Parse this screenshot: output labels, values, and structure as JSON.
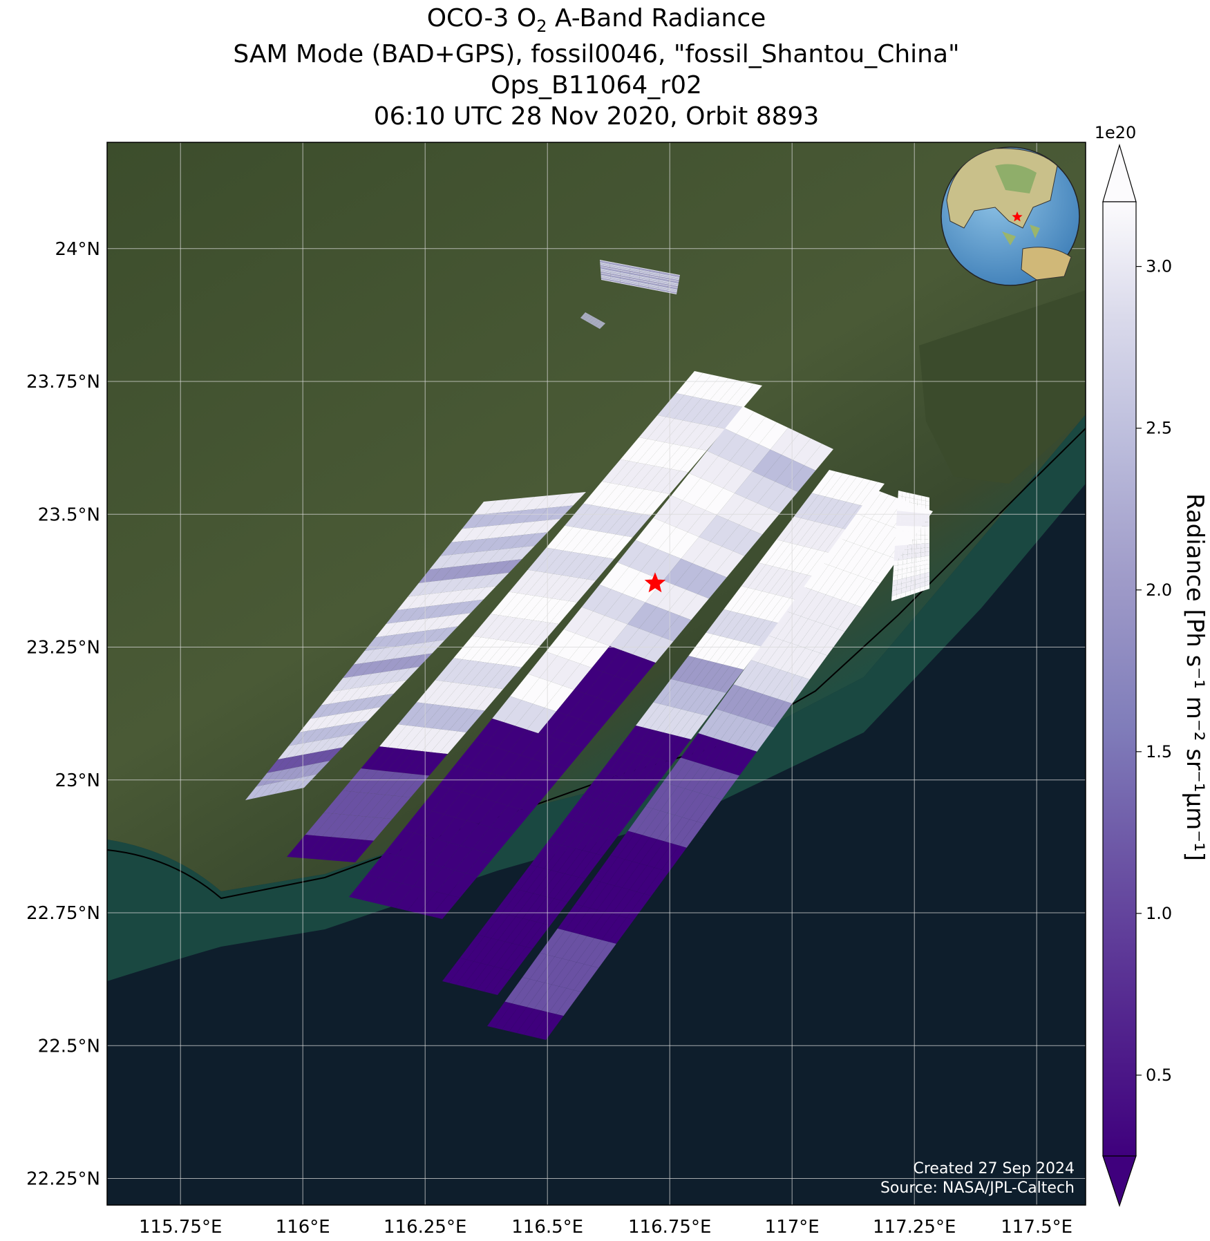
{
  "title": {
    "line1_pre": "OCO-3 O",
    "line1_sub": "2",
    "line1_post": " A-Band Radiance",
    "line2": "SAM Mode (BAD+GPS), fossil0046, \"fossil_Shantou_China\"",
    "line3": "Ops_B11064_r02",
    "line4": "06:10 UTC 28 Nov 2020, Orbit 8893"
  },
  "map": {
    "lon_ticks": [
      {
        "value": 115.75,
        "label": "115.75°E"
      },
      {
        "value": 116.0,
        "label": "116°E"
      },
      {
        "value": 116.25,
        "label": "116.25°E"
      },
      {
        "value": 116.5,
        "label": "116.5°E"
      },
      {
        "value": 116.75,
        "label": "116.75°E"
      },
      {
        "value": 117.0,
        "label": "117°E"
      },
      {
        "value": 117.25,
        "label": "117.25°E"
      },
      {
        "value": 117.5,
        "label": "117.5°E"
      }
    ],
    "lat_ticks": [
      {
        "value": 24.0,
        "label": "24°N"
      },
      {
        "value": 23.75,
        "label": "23.75°N"
      },
      {
        "value": 23.5,
        "label": "23.5°N"
      },
      {
        "value": 23.25,
        "label": "23.25°N"
      },
      {
        "value": 23.0,
        "label": "23°N"
      },
      {
        "value": 22.75,
        "label": "22.75°N"
      },
      {
        "value": 22.5,
        "label": "22.5°N"
      },
      {
        "value": 22.25,
        "label": "22.25°N"
      }
    ],
    "lon_range": [
      115.6,
      117.6
    ],
    "lat_range": [
      22.2,
      24.2
    ],
    "target": {
      "lon": 116.72,
      "lat": 23.37,
      "marker": "red-star"
    },
    "grid": true,
    "colors": {
      "land": "#3f5230",
      "sea": "#0e1e2c",
      "coast": "#1f5a4a",
      "grid": "#d9d9d9",
      "target": "#ff0000"
    }
  },
  "colorbar": {
    "multiplier": "1e20",
    "title": "Radiance [Ph s⁻¹ m⁻² sr⁻¹μm⁻¹]",
    "ticks": [
      {
        "value": 3.0,
        "label": "3.0"
      },
      {
        "value": 2.5,
        "label": "2.5"
      },
      {
        "value": 2.0,
        "label": "2.0"
      },
      {
        "value": 1.5,
        "label": "1.5"
      },
      {
        "value": 1.0,
        "label": "1.0"
      },
      {
        "value": 0.5,
        "label": "0.5"
      }
    ],
    "vmin": 0.25,
    "vmax": 3.2,
    "extend": "both",
    "colormap": "Purples_r"
  },
  "credits": {
    "created": "Created 27 Sep 2024",
    "source": "Source: NASA/JPL-Caltech"
  }
}
